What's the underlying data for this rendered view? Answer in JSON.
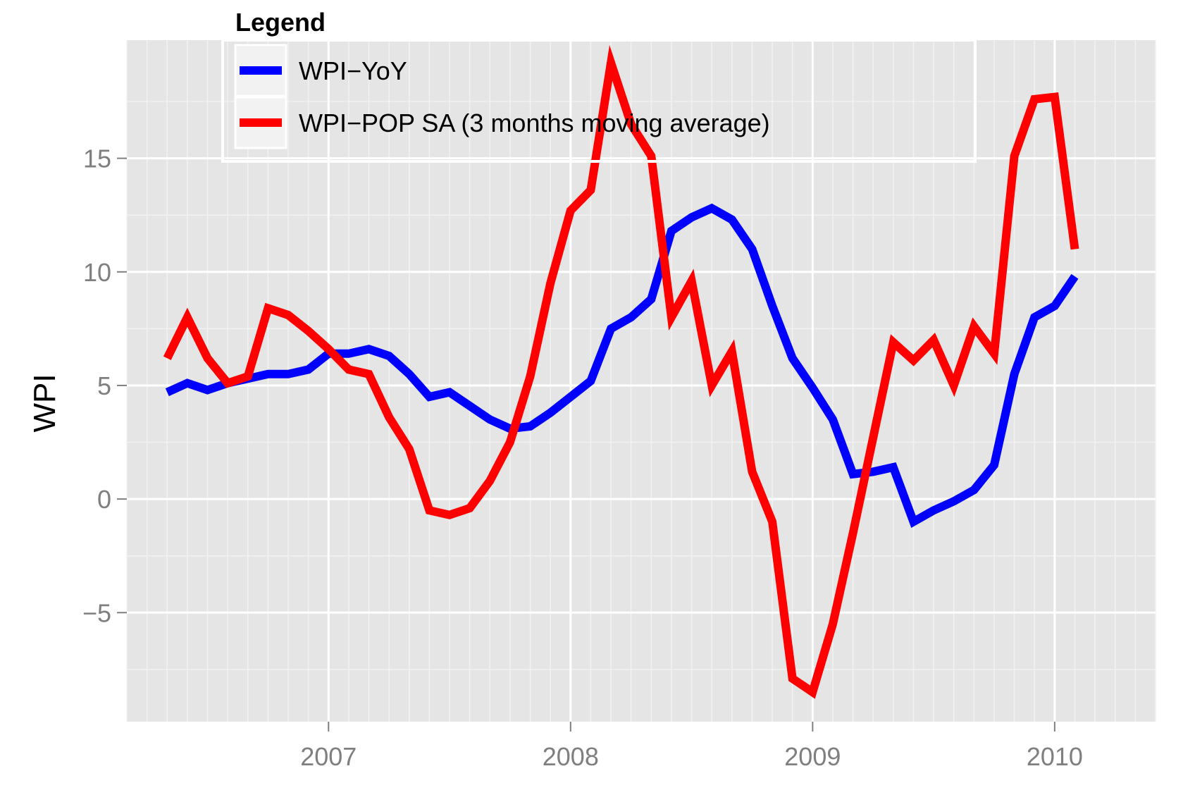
{
  "chart_data": {
    "type": "line",
    "title": "",
    "xlabel": "",
    "ylabel": "WPI",
    "x_ticks": [
      "2007",
      "2008",
      "2009",
      "2010"
    ],
    "y_ticks": [
      -5,
      0,
      5,
      10,
      15
    ],
    "ylim": [
      -9.8,
      20.2
    ],
    "xlim": [
      "2006-03",
      "2010-06"
    ],
    "grid": true,
    "legend": {
      "title": "Legend",
      "placement": "top-left, inside plot"
    },
    "x": [
      "2006-05",
      "2006-06",
      "2006-07",
      "2006-08",
      "2006-09",
      "2006-10",
      "2006-11",
      "2006-12",
      "2007-01",
      "2007-02",
      "2007-03",
      "2007-04",
      "2007-05",
      "2007-06",
      "2007-07",
      "2007-08",
      "2007-09",
      "2007-10",
      "2007-11",
      "2007-12",
      "2008-01",
      "2008-02",
      "2008-03",
      "2008-04",
      "2008-05",
      "2008-06",
      "2008-07",
      "2008-08",
      "2008-09",
      "2008-10",
      "2008-11",
      "2008-12",
      "2009-01",
      "2009-02",
      "2009-03",
      "2009-04",
      "2009-05",
      "2009-06",
      "2009-07",
      "2009-08",
      "2009-09",
      "2009-10",
      "2009-11",
      "2009-12",
      "2010-01",
      "2010-02"
    ],
    "series": [
      {
        "name": "WPI−YoY",
        "color": "#0000ff",
        "values": [
          4.7,
          5.1,
          4.8,
          5.1,
          5.3,
          5.5,
          5.5,
          5.7,
          6.4,
          6.4,
          6.6,
          6.3,
          5.5,
          4.5,
          4.7,
          4.1,
          3.5,
          3.1,
          3.2,
          3.8,
          4.5,
          5.2,
          7.5,
          8.0,
          8.8,
          11.8,
          12.4,
          12.8,
          12.3,
          11.0,
          8.5,
          6.2,
          4.9,
          3.5,
          1.1,
          1.2,
          1.4,
          -1.0,
          -0.5,
          -0.1,
          0.4,
          1.5,
          5.5,
          8.0,
          8.5,
          9.8
        ]
      },
      {
        "name": "WPI−POP SA (3 months moving average)",
        "color": "#ff0000",
        "values": [
          6.2,
          8.0,
          6.2,
          5.1,
          5.4,
          8.4,
          8.1,
          7.4,
          6.6,
          5.7,
          5.5,
          3.6,
          2.2,
          -0.5,
          -0.7,
          -0.4,
          0.8,
          2.5,
          5.4,
          9.5,
          12.7,
          13.6,
          19.2,
          16.5,
          15.1,
          8.0,
          9.6,
          5.0,
          6.5,
          1.2,
          -1.0,
          -7.9,
          -8.5,
          -5.5,
          -1.5,
          2.7,
          6.9,
          6.1,
          7.0,
          5.0,
          7.6,
          6.4,
          15.1,
          17.6,
          17.7,
          11.0
        ]
      }
    ]
  }
}
